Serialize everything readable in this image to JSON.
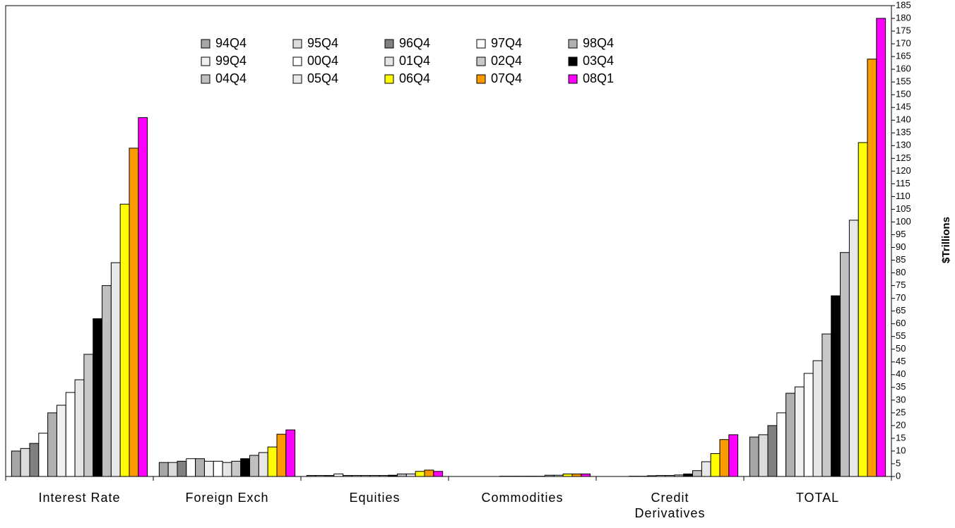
{
  "chart_data": {
    "type": "bar",
    "y_label": "$Trillions",
    "categories": [
      "Interest Rate",
      "Foreign Exch",
      "Equities",
      "Commodities",
      "Credit Derivatives",
      "TOTAL"
    ],
    "ylim": [
      0,
      185
    ],
    "yticks": [
      0,
      5,
      10,
      15,
      20,
      25,
      30,
      35,
      40,
      45,
      50,
      55,
      60,
      65,
      70,
      75,
      80,
      85,
      90,
      95,
      100,
      105,
      110,
      115,
      120,
      125,
      130,
      135,
      140,
      145,
      150,
      155,
      160,
      165,
      170,
      175,
      180,
      185
    ],
    "series": [
      {
        "name": "94Q4",
        "color": "#a6a6a6",
        "values": [
          10,
          5.5,
          0.4,
          0,
          0,
          15.5
        ]
      },
      {
        "name": "95Q4",
        "color": "#dcdcdc",
        "values": [
          11,
          5.5,
          0.4,
          0,
          0,
          16.4
        ]
      },
      {
        "name": "96Q4",
        "color": "#808080",
        "values": [
          13,
          6,
          0.4,
          0,
          0,
          20
        ]
      },
      {
        "name": "97Q4",
        "color": "#ffffff",
        "values": [
          17,
          7,
          1,
          0,
          0.1,
          25
        ]
      },
      {
        "name": "98Q4",
        "color": "#b0b0b0",
        "values": [
          25,
          7,
          0.4,
          0,
          0.1,
          32.7
        ]
      },
      {
        "name": "99Q4",
        "color": "#f0f0f0",
        "values": [
          28,
          6,
          0.4,
          0.1,
          0.3,
          35.2
        ]
      },
      {
        "name": "00Q4",
        "color": "#ffffff",
        "values": [
          33,
          6,
          0.4,
          0.1,
          0.4,
          40.5
        ]
      },
      {
        "name": "01Q4",
        "color": "#e6e6e6",
        "values": [
          38,
          5.5,
          0.4,
          0.1,
          0.4,
          45.5
        ]
      },
      {
        "name": "02Q4",
        "color": "#c8c8c8",
        "values": [
          48,
          6,
          0.4,
          0.1,
          0.6,
          56
        ]
      },
      {
        "name": "03Q4",
        "color": "#000000",
        "values": [
          62,
          7,
          0.5,
          0.1,
          1,
          71
        ]
      },
      {
        "name": "04Q4",
        "color": "#c0c0c0",
        "values": [
          75,
          8.3,
          1,
          0.5,
          2.3,
          88
        ]
      },
      {
        "name": "05Q4",
        "color": "#e8e8e8",
        "values": [
          84,
          9.4,
          1,
          0.5,
          5.8,
          100.7
        ]
      },
      {
        "name": "06Q4",
        "color": "#ffff00",
        "values": [
          107,
          11.6,
          2,
          1,
          9,
          131.2
        ]
      },
      {
        "name": "07Q4",
        "color": "#ff9900",
        "values": [
          129,
          16.6,
          2.5,
          1,
          14.5,
          164
        ]
      },
      {
        "name": "08Q1",
        "color": "#ff00ff",
        "values": [
          141,
          18.3,
          2,
          1,
          16.4,
          180
        ]
      }
    ]
  }
}
